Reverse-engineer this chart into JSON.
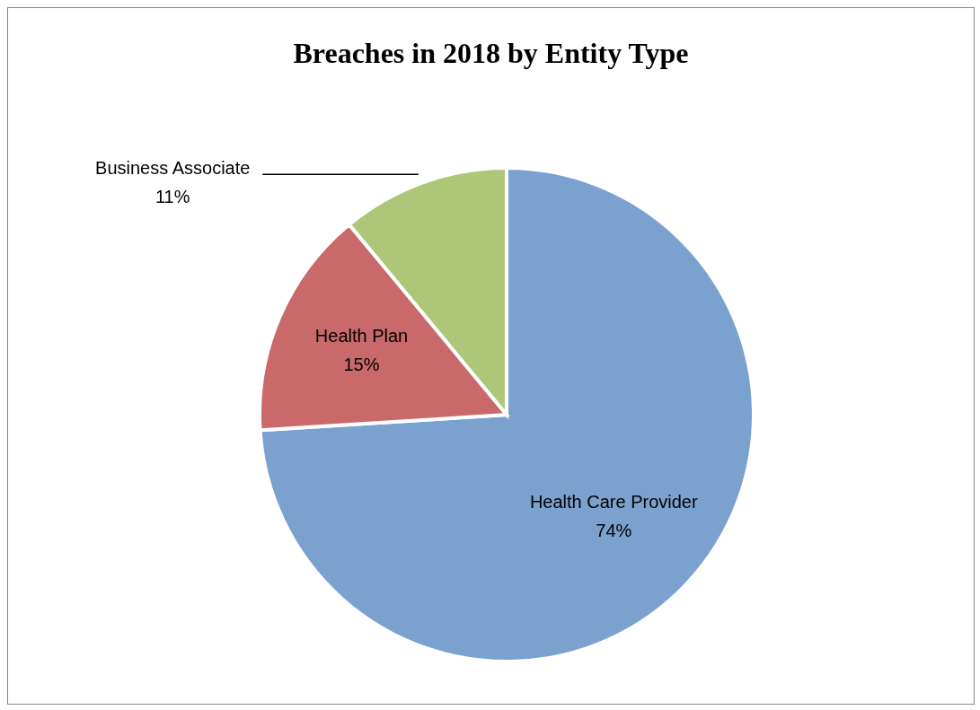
{
  "chart_data": {
    "type": "pie",
    "title": "Breaches in 2018 by Entity Type",
    "categories": [
      "Health Care Provider",
      "Health Plan",
      "Business Associate"
    ],
    "values": [
      74,
      15,
      11
    ],
    "value_labels": [
      "74%",
      "15%",
      "11%"
    ],
    "colors": [
      "#7ba1cf",
      "#c9696a",
      "#adc678"
    ],
    "legend": false
  }
}
